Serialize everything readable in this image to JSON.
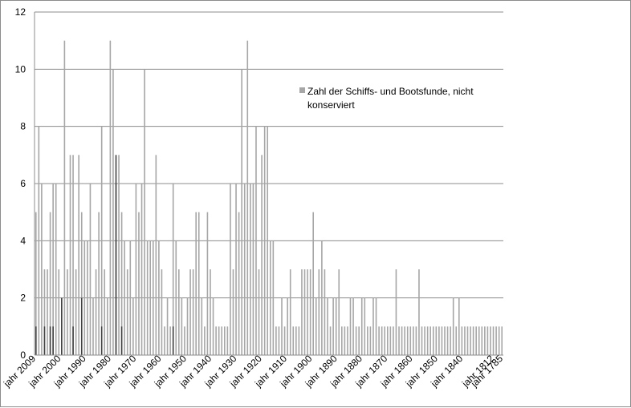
{
  "chart_data": {
    "type": "bar",
    "title": "",
    "xlabel": "",
    "ylabel": "",
    "ylim": [
      0,
      12
    ],
    "y_ticks": [
      "0",
      "2",
      "4",
      "6",
      "8",
      "10",
      "12"
    ],
    "grid": true,
    "legend_position": "top-right",
    "x_tick_labels": [
      "jahr 2009",
      "jahr 2000",
      "jahr 1990",
      "jahr 1980",
      "jahr 1970",
      "jahr 1960",
      "jahr 1950",
      "jahr 1940",
      "jahr 1930",
      "jahr 1920",
      "jahr 1910",
      "jahr 1900",
      "jahr 1890",
      "jahr 1880",
      "jahr 1870",
      "jahr 1860",
      "jahr 1850",
      "jahr 1840",
      "jahr 1812",
      "jahr 1785"
    ],
    "series": [
      {
        "name": "Zahl der Schiffs- und Bootsfunde, nicht konserviert",
        "color": "#a6a6a6",
        "values": [
          5,
          8,
          6,
          3,
          3,
          5,
          6,
          6,
          3,
          2,
          11,
          3,
          7,
          7,
          3,
          7,
          5,
          4,
          4,
          6,
          2,
          3,
          5,
          8,
          3,
          2,
          11,
          10,
          6,
          7,
          5,
          4,
          3,
          4,
          2,
          6,
          5,
          6,
          10,
          4,
          4,
          4,
          7,
          4,
          3,
          1,
          2,
          1,
          6,
          4,
          3,
          2,
          1,
          2,
          3,
          3,
          5,
          5,
          2,
          1,
          5,
          3,
          2,
          1,
          1,
          1,
          1,
          1,
          6,
          3,
          6,
          5,
          10,
          6,
          11,
          6,
          6,
          8,
          3,
          7,
          8,
          8,
          4,
          4,
          1,
          1,
          2,
          1,
          2,
          3,
          1,
          1,
          1,
          3,
          3,
          3,
          3,
          5,
          2,
          3,
          4,
          3,
          2,
          1,
          2,
          2,
          3,
          1,
          1,
          1,
          2,
          2,
          1,
          1,
          2,
          2,
          1,
          1,
          2,
          2,
          1,
          1,
          1,
          1,
          1,
          1,
          3,
          1,
          1,
          1,
          1,
          1,
          1,
          1,
          3,
          1,
          1,
          1,
          1,
          1,
          1,
          1,
          1,
          1,
          1,
          1,
          2,
          1,
          2,
          1,
          1,
          1,
          1,
          1,
          1,
          1,
          1,
          1,
          1,
          1,
          1,
          1,
          1,
          1
        ]
      },
      {
        "name": "",
        "color": "#404040",
        "values": [
          1,
          0,
          0,
          1,
          0,
          1,
          1,
          0,
          0,
          2,
          0,
          0,
          0,
          1,
          0,
          0,
          2,
          0,
          0,
          0,
          0,
          0,
          0,
          1,
          0,
          0,
          0,
          0,
          7,
          0,
          1,
          0,
          0,
          0,
          0,
          0,
          0,
          0,
          0,
          0,
          0,
          0,
          0,
          0,
          0,
          0,
          0,
          0,
          1,
          0,
          0,
          0,
          0,
          0,
          0,
          0,
          0,
          0,
          0,
          0,
          0,
          0,
          0,
          0,
          0,
          0,
          0,
          0,
          0,
          0,
          0,
          0,
          0,
          0,
          0,
          0,
          0,
          0,
          0,
          0,
          0,
          0,
          0,
          0,
          0,
          0,
          0,
          0,
          0,
          0,
          0,
          0,
          0,
          0,
          0,
          0,
          0,
          0,
          0,
          0,
          0,
          0,
          0,
          0,
          0,
          0,
          0,
          0,
          0,
          0,
          0,
          0,
          0,
          0,
          0,
          0,
          0,
          0,
          0,
          0,
          0,
          0,
          0,
          0,
          0,
          0,
          0,
          0,
          0,
          0,
          0,
          0,
          0,
          0,
          0,
          0,
          0,
          0,
          0,
          0,
          0,
          0,
          0,
          0,
          0,
          0,
          0,
          0,
          0,
          0,
          0,
          0,
          0,
          0,
          0,
          0,
          0,
          0,
          0,
          0,
          0,
          0,
          0,
          0
        ]
      }
    ]
  },
  "legend": {
    "label_line1": "Zahl der Schiffs- und Bootsfunde, nicht",
    "label_line2": "konserviert"
  }
}
